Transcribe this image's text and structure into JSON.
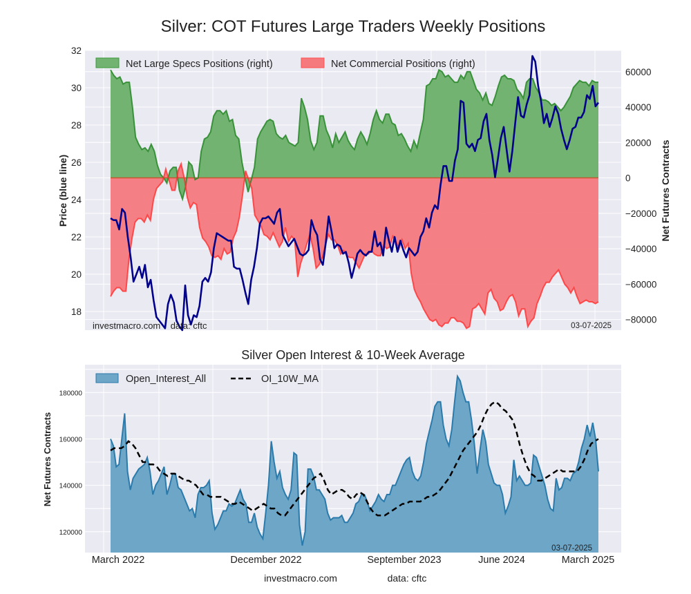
{
  "chart_data": [
    {
      "type": "area",
      "title": "Silver: COT Futures Large Traders Weekly Positions",
      "ylabel_left": "Price (blue line)",
      "ylabel_right": "Net Futures Contracts",
      "left_ticks": [
        18,
        20,
        22,
        24,
        26,
        28,
        30,
        32
      ],
      "left_ylim": [
        17.0,
        32.0
      ],
      "right_ticks": [
        -80000,
        -60000,
        -40000,
        -20000,
        0,
        20000,
        40000,
        60000
      ],
      "right_ylim": [
        -86000,
        72000
      ],
      "grid": true,
      "legend_position": "top-left",
      "legend": [
        "Net Large Specs Positions (right)",
        "Net Commercial Positions (right)"
      ],
      "footer_left": "investmacro.com    data: cftc",
      "footer_right": "03-07-2025",
      "x_range_weeks": [
        0,
        156
      ],
      "series": [
        {
          "name": "Net Large Specs Positions",
          "color": "#2e8b2e",
          "fill": "#72b372",
          "values": [
            61000,
            58000,
            56000,
            57000,
            53000,
            54000,
            54000,
            40000,
            23000,
            19000,
            16000,
            17000,
            15000,
            19000,
            15000,
            7000,
            2000,
            0,
            -3000,
            4000,
            6000,
            6000,
            -7000,
            -12000,
            -5000,
            9000,
            7000,
            -1000,
            0,
            15000,
            22000,
            23000,
            26000,
            35000,
            38000,
            38000,
            36000,
            38000,
            32000,
            33000,
            24000,
            22000,
            9000,
            0,
            -8000,
            -1000,
            6000,
            22000,
            26000,
            29000,
            32000,
            33000,
            32000,
            25000,
            23000,
            22000,
            24000,
            20000,
            19000,
            18000,
            20000,
            45000,
            40000,
            33000,
            21000,
            16000,
            20000,
            35000,
            35000,
            27000,
            23000,
            17000,
            25000,
            20000,
            23000,
            26000,
            21000,
            18000,
            16000,
            22000,
            26000,
            23000,
            19000,
            25000,
            33000,
            38000,
            33000,
            31000,
            36000,
            36000,
            31000,
            30000,
            24000,
            25000,
            22000,
            18000,
            15000,
            21000,
            17000,
            25000,
            33000,
            52000,
            53000,
            56000,
            56000,
            61000,
            60000,
            57000,
            58000,
            56000,
            54000,
            54000,
            58000,
            56000,
            60000,
            60000,
            55000,
            50000,
            48000,
            44000,
            48000,
            42000,
            41000,
            46000,
            52000,
            57000,
            58000,
            56000,
            56000,
            55000,
            50000,
            48000,
            45000,
            54000,
            56000,
            56000,
            51000,
            48000,
            44000,
            44000,
            43000,
            41000,
            42000,
            40000,
            38000,
            40000,
            43000,
            46000,
            51000,
            53000,
            55000,
            54000,
            54000,
            52000,
            55000,
            54000,
            54000
          ],
          "ylim_axis": "right"
        },
        {
          "name": "Net Commercial Positions",
          "color": "#ff3030",
          "fill": "#f47a7e",
          "values": [
            -67000,
            -64000,
            -62000,
            -62000,
            -64000,
            -64000,
            -46000,
            -34000,
            -25000,
            -23000,
            -23000,
            -25000,
            -21000,
            -24000,
            -12000,
            -6000,
            -4000,
            -2000,
            5000,
            -1000,
            -7000,
            -7000,
            4000,
            8000,
            0,
            -11000,
            -17000,
            -14000,
            -15000,
            -28000,
            -34000,
            -36000,
            -39000,
            -44000,
            -45000,
            -44000,
            -46000,
            -40000,
            -43000,
            -42000,
            -34000,
            -30000,
            -22000,
            -10000,
            4000,
            -1000,
            -6000,
            -21000,
            -24000,
            -27000,
            -32000,
            -33000,
            -35000,
            -31000,
            -35000,
            -39000,
            -36000,
            -28000,
            -36000,
            -33000,
            -35000,
            -56000,
            -48000,
            -43000,
            -37000,
            -32000,
            -40000,
            -51000,
            -49000,
            -45000,
            -38000,
            -32000,
            -35000,
            -35000,
            -38000,
            -43000,
            -41000,
            -44000,
            -45000,
            -45000,
            -48000,
            -51000,
            -47000,
            -43000,
            -43000,
            -41000,
            -43000,
            -44000,
            -44000,
            -38000,
            -40000,
            -39000,
            -33000,
            -36000,
            -40000,
            -35000,
            -40000,
            -37000,
            -54000,
            -63000,
            -67000,
            -70000,
            -74000,
            -77000,
            -80000,
            -81000,
            -80000,
            -83000,
            -84000,
            -82000,
            -82000,
            -79000,
            -79000,
            -81000,
            -81000,
            -82000,
            -85000,
            -84000,
            -74000,
            -73000,
            -71000,
            -74000,
            -77000,
            -65000,
            -63000,
            -68000,
            -70000,
            -75000,
            -74000,
            -70000,
            -67000,
            -66000,
            -70000,
            -78000,
            -74000,
            -74000,
            -84000,
            -81000,
            -79000,
            -71000,
            -67000,
            -62000,
            -59000,
            -59000,
            -56000,
            -54000,
            -52000,
            -56000,
            -60000,
            -62000,
            -65000,
            -62000,
            -67000,
            -71000,
            -70000,
            -69000,
            -70000,
            -70000,
            -71000,
            -70000
          ],
          "ylim_axis": "right"
        },
        {
          "name": "Price",
          "color": "#00008b",
          "values": [
            23.0,
            22.9,
            22.9,
            22.4,
            23.5,
            23.3,
            22.0,
            20.9,
            19.6,
            20.0,
            20.4,
            19.8,
            20.5,
            19.3,
            19.7,
            18.6,
            17.7,
            17.5,
            17.3,
            17.1,
            18.4,
            18.9,
            18.5,
            17.5,
            17.2,
            17.0,
            19.4,
            17.8,
            17.3,
            17.8,
            17.7,
            18.3,
            19.6,
            19.8,
            19.6,
            20.1,
            21.4,
            22.2,
            22.1,
            22.0,
            21.9,
            21.8,
            21.8,
            20.4,
            20.3,
            20.3,
            19.7,
            19.0,
            18.4,
            19.7,
            20.4,
            21.4,
            22.7,
            23.0,
            23.0,
            23.1,
            22.9,
            22.7,
            23.3,
            23.5,
            22.1,
            21.8,
            21.5,
            21.7,
            21.9,
            21.5,
            21.1,
            21.0,
            21.1,
            21.3,
            22.9,
            22.4,
            22.1,
            20.8,
            20.5,
            21.7,
            23.1,
            22.3,
            21.4,
            21.6,
            21.5,
            21.1,
            21.2,
            20.6,
            19.8,
            20.4,
            21.1,
            21.3,
            21.1,
            21.0,
            21.2,
            21.2,
            22.3,
            21.5,
            21.7,
            21.0,
            22.5,
            21.8,
            21.2,
            22.0,
            21.2,
            21.8,
            21.3,
            20.9,
            21.4,
            21.2,
            21.0,
            21.2,
            22.0,
            22.3,
            23.0,
            22.5,
            23.3,
            23.7,
            23.5,
            24.8,
            25.8,
            25.8,
            25.0,
            25.0,
            26.1,
            26.7,
            29.3,
            29.2,
            27.0,
            26.8,
            27.0,
            26.6,
            27.2,
            27.3,
            28.2,
            28.6,
            27.2,
            26.4,
            25.2,
            26.2,
            27.3,
            27.9,
            26.7,
            25.5,
            26.6,
            28.1,
            29.5,
            28.5,
            28.4,
            29.1,
            29.6,
            31.7,
            31.4,
            30.1,
            29.3,
            28.1,
            28.6,
            27.9,
            28.4,
            29.0,
            28.6,
            27.8,
            27.2,
            26.7,
            27.2,
            27.8,
            27.9,
            28.4,
            28.4,
            28.7,
            29.6,
            29.4,
            30.1,
            29.0,
            29.2
          ],
          "ylim_axis": "left"
        }
      ]
    },
    {
      "type": "area",
      "title": "Silver Open Interest & 10-Week Average",
      "ylabel": "Net Futures Contracts",
      "yticks": [
        120000,
        140000,
        160000,
        180000
      ],
      "ylim": [
        111000,
        192000
      ],
      "xticks": [
        "March 2022",
        "December 2022",
        "September 2023",
        "June 2024",
        "March 2025"
      ],
      "grid": true,
      "legend_position": "top-left",
      "legend": [
        "Open_Interest_All",
        "OI_10W_MA"
      ],
      "footer_right": "03-07-2025",
      "series": [
        {
          "name": "Open_Interest_All",
          "color": "#2a7aab",
          "fill": "#6ea6c8",
          "values": [
            160000,
            157000,
            148000,
            149000,
            160000,
            171000,
            146000,
            138000,
            143000,
            145000,
            147000,
            148000,
            149000,
            152000,
            146000,
            136000,
            140000,
            142000,
            145000,
            148000,
            136000,
            140000,
            145000,
            145000,
            139000,
            138000,
            135000,
            132000,
            129000,
            130000,
            126000,
            136000,
            139000,
            139000,
            140000,
            142000,
            128000,
            121000,
            123000,
            126000,
            129000,
            129000,
            132000,
            131000,
            132000,
            135000,
            138000,
            134000,
            132000,
            124000,
            124000,
            128000,
            122000,
            119000,
            117000,
            128000,
            140000,
            159000,
            150000,
            143000,
            146000,
            139000,
            136000,
            134000,
            138000,
            154000,
            153000,
            123000,
            114000,
            120000,
            147000,
            147000,
            144000,
            138000,
            138000,
            136000,
            134000,
            128000,
            125000,
            126000,
            126000,
            126000,
            127000,
            124000,
            124000,
            126000,
            128000,
            132000,
            133000,
            136000,
            136000,
            133000,
            129000,
            131000,
            133000,
            136000,
            134000,
            133000,
            136000,
            136000,
            140000,
            140000,
            143000,
            146000,
            149000,
            151000,
            152000,
            146000,
            143000,
            142000,
            144000,
            150000,
            158000,
            163000,
            168000,
            174000,
            176000,
            176000,
            166000,
            160000,
            157000,
            164000,
            176000,
            187000,
            185000,
            180000,
            176000,
            176000,
            168000,
            158000,
            145000,
            155000,
            164000,
            159000,
            149000,
            145000,
            141000,
            140000,
            140000,
            136000,
            128000,
            131000,
            135000,
            151000,
            142000,
            144000,
            142000,
            140000,
            140000,
            141000,
            153000,
            152000,
            148000,
            144000,
            140000,
            134000,
            130000,
            129000,
            143000,
            138000,
            139000,
            143000,
            143000,
            142000,
            145000,
            146000,
            150000,
            156000,
            160000,
            166000,
            161000,
            167000,
            160000,
            146000
          ],
          "trimmed": true
        },
        {
          "name": "OI_10W_MA",
          "color": "#000000",
          "dash": true,
          "values": [
            155000,
            156000,
            156000,
            156000,
            157000,
            159000,
            158000,
            156000,
            153000,
            150000,
            150000,
            149000,
            149000,
            148000,
            146000,
            145000,
            144000,
            145000,
            145000,
            144000,
            143000,
            142000,
            142000,
            141000,
            140000,
            138000,
            136000,
            136000,
            135000,
            135000,
            135000,
            135000,
            134000,
            133000,
            132000,
            132000,
            133000,
            132000,
            131000,
            130000,
            129000,
            130000,
            131000,
            132000,
            131000,
            130000,
            130000,
            128000,
            127000,
            127000,
            129000,
            131000,
            133000,
            135000,
            137000,
            139000,
            141000,
            143000,
            144000,
            145000,
            142000,
            138000,
            136000,
            137000,
            138000,
            138000,
            137000,
            135000,
            134000,
            136000,
            137000,
            136000,
            133000,
            130000,
            128000,
            127000,
            127000,
            127000,
            128000,
            129000,
            130000,
            131000,
            132000,
            132000,
            133000,
            133000,
            133000,
            133000,
            134000,
            135000,
            135000,
            136000,
            137000,
            139000,
            141000,
            143000,
            146000,
            149000,
            152000,
            155000,
            157000,
            159000,
            161000,
            163000,
            166000,
            170000,
            173000,
            175000,
            176000,
            175000,
            173000,
            172000,
            170000,
            168000,
            163000,
            157000,
            152000,
            148000,
            145000,
            144000,
            142000,
            142000,
            143000,
            144000,
            145000,
            146000,
            147000,
            146000,
            146000,
            146000,
            146000,
            146000,
            148000,
            151000,
            155000,
            158000,
            159000,
            160000
          ],
          "trimmed": true
        }
      ]
    }
  ]
}
